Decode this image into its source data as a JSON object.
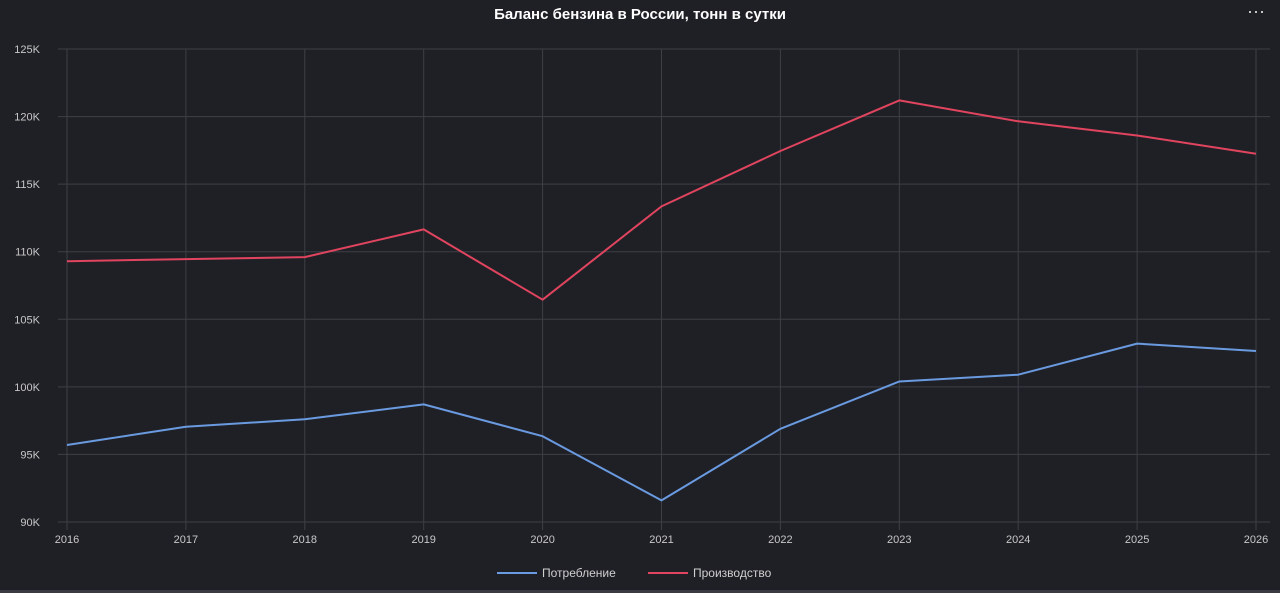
{
  "title": "Баланс бензина в России, тонн в сутки",
  "menu_icon": "more-horizontal-icon",
  "colors": {
    "background": "#1f2026",
    "grid": "#3e3f46",
    "consumption": "#6a9ae0",
    "production": "#e0445e"
  },
  "chart_data": {
    "type": "line",
    "title": "Баланс бензина в России, тонн в сутки",
    "x": [
      "2016",
      "2017",
      "2018",
      "2019",
      "2020",
      "2021",
      "2022",
      "2023",
      "2024",
      "2025",
      "2026"
    ],
    "y_ticks": [
      "90K",
      "95K",
      "100K",
      "105K",
      "110K",
      "115K",
      "120K",
      "125K"
    ],
    "ylim": [
      90000,
      125000
    ],
    "grid": true,
    "legend_position": "bottom-center",
    "series": [
      {
        "name": "Потребление",
        "color": "#6a9ae0",
        "values": [
          95700,
          97050,
          97600,
          98700,
          96350,
          91600,
          96900,
          100400,
          100900,
          103200,
          102650
        ]
      },
      {
        "name": "Производство",
        "color": "#e0445e",
        "values": [
          109300,
          109450,
          109600,
          111650,
          106450,
          113350,
          117450,
          121200,
          119650,
          118600,
          117250
        ]
      }
    ]
  }
}
